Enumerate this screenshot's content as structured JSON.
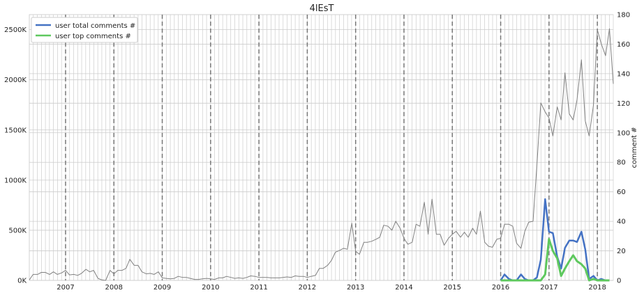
{
  "chart_data": {
    "type": "line",
    "title": "4lEsT",
    "y_left_label": "",
    "y_right_label": "comment #",
    "x_range": [
      2006.25,
      2018.33
    ],
    "y_left_range": [
      0,
      2650000
    ],
    "y_left_ticks": [
      0,
      500000,
      1000000,
      1500000,
      2000000,
      2500000
    ],
    "y_left_tick_labels": [
      "0K",
      "500K",
      "1000K",
      "1500K",
      "2000K",
      "2500K"
    ],
    "y_right_range": [
      0,
      180
    ],
    "y_right_ticks": [
      0,
      20,
      40,
      60,
      80,
      100,
      120,
      140,
      160,
      180
    ],
    "x_ticks": [
      2007,
      2008,
      2009,
      2010,
      2011,
      2012,
      2013,
      2014,
      2015,
      2016,
      2017,
      2018
    ],
    "x_tick_labels": [
      "2007",
      "2008",
      "2009",
      "2010",
      "2011",
      "2012",
      "2013",
      "2014",
      "2015",
      "2016",
      "2017",
      "2018"
    ],
    "year_markers": [
      2007,
      2008,
      2009,
      2010,
      2011,
      2012,
      2013,
      2014,
      2015,
      2016,
      2017,
      2018
    ],
    "grid": true,
    "legend_position": "top-left",
    "colors": {
      "total": "#4472c4",
      "top": "#5ec85e",
      "gray": "#808080",
      "grid": "#cccccc",
      "marker": "#777777"
    },
    "series": [
      {
        "name": "user total comments #",
        "axis": "right",
        "x": [
          2016.0,
          2016.08,
          2016.17,
          2016.25,
          2016.33,
          2016.42,
          2016.5,
          2016.58,
          2016.67,
          2016.75,
          2016.83,
          2016.92,
          2017.0,
          2017.08,
          2017.17,
          2017.25,
          2017.33,
          2017.42,
          2017.5,
          2017.58,
          2017.67,
          2017.75,
          2017.83,
          2017.92,
          2018.0,
          2018.08,
          2018.17,
          2018.25
        ],
        "values": [
          0,
          4,
          1,
          0,
          0,
          4,
          1,
          0,
          0,
          2,
          14,
          55,
          33,
          32,
          16,
          8,
          22,
          27,
          27,
          26,
          33,
          21,
          1,
          3,
          0,
          1,
          0,
          0
        ]
      },
      {
        "name": "user top comments #",
        "axis": "right",
        "x": [
          2016.0,
          2016.17,
          2016.42,
          2016.58,
          2016.75,
          2016.83,
          2016.92,
          2017.0,
          2017.08,
          2017.17,
          2017.25,
          2017.33,
          2017.42,
          2017.5,
          2017.58,
          2017.67,
          2017.75,
          2017.83,
          2017.92,
          2018.0,
          2018.08,
          2018.17,
          2018.25
        ],
        "values": [
          0,
          0,
          0,
          0,
          0,
          0,
          4,
          28,
          20,
          15,
          3,
          8,
          13,
          17,
          13,
          11,
          8,
          0,
          1,
          0,
          0,
          0,
          0
        ]
      },
      {
        "name": "",
        "axis": "left",
        "x": [
          2006.25,
          2006.33,
          2006.42,
          2006.5,
          2006.58,
          2006.67,
          2006.75,
          2006.83,
          2006.92,
          2007.0,
          2007.08,
          2007.17,
          2007.25,
          2007.33,
          2007.42,
          2007.5,
          2007.58,
          2007.67,
          2007.75,
          2007.83,
          2007.92,
          2008.0,
          2008.08,
          2008.17,
          2008.25,
          2008.33,
          2008.42,
          2008.5,
          2008.58,
          2008.67,
          2008.75,
          2008.83,
          2008.92,
          2009.0,
          2009.08,
          2009.17,
          2009.25,
          2009.33,
          2009.42,
          2009.5,
          2009.58,
          2009.67,
          2009.75,
          2009.83,
          2009.92,
          2010.0,
          2010.08,
          2010.17,
          2010.25,
          2010.33,
          2010.42,
          2010.5,
          2010.58,
          2010.67,
          2010.75,
          2010.83,
          2010.92,
          2011.0,
          2011.08,
          2011.17,
          2011.25,
          2011.33,
          2011.42,
          2011.5,
          2011.58,
          2011.67,
          2011.75,
          2011.83,
          2011.92,
          2012.0,
          2012.08,
          2012.17,
          2012.25,
          2012.33,
          2012.42,
          2012.5,
          2012.58,
          2012.67,
          2012.75,
          2012.83,
          2012.92,
          2013.0,
          2013.08,
          2013.17,
          2013.25,
          2013.33,
          2013.42,
          2013.5,
          2013.58,
          2013.67,
          2013.75,
          2013.83,
          2013.92,
          2014.0,
          2014.08,
          2014.17,
          2014.25,
          2014.33,
          2014.42,
          2014.5,
          2014.58,
          2014.67,
          2014.75,
          2014.83,
          2014.92,
          2015.0,
          2015.08,
          2015.17,
          2015.25,
          2015.33,
          2015.42,
          2015.5,
          2015.58,
          2015.67,
          2015.75,
          2015.83,
          2015.92,
          2016.0,
          2016.08,
          2016.17,
          2016.25,
          2016.33,
          2016.42,
          2016.5,
          2016.58,
          2016.67,
          2016.75,
          2016.83,
          2016.92,
          2017.0,
          2017.08,
          2017.17,
          2017.25,
          2017.33,
          2017.42,
          2017.5,
          2017.58,
          2017.67,
          2017.75,
          2017.83,
          2017.92,
          2018.0,
          2018.08,
          2018.17,
          2018.25,
          2018.33
        ],
        "values": [
          5000,
          60000,
          60000,
          80000,
          80000,
          60000,
          85000,
          60000,
          75000,
          100000,
          55000,
          60000,
          50000,
          70000,
          110000,
          85000,
          100000,
          20000,
          5000,
          0,
          100000,
          65000,
          100000,
          100000,
          120000,
          210000,
          150000,
          150000,
          85000,
          65000,
          70000,
          60000,
          85000,
          25000,
          20000,
          15000,
          20000,
          40000,
          30000,
          30000,
          20000,
          10000,
          10000,
          15000,
          20000,
          15000,
          10000,
          25000,
          25000,
          40000,
          30000,
          20000,
          25000,
          20000,
          30000,
          45000,
          40000,
          30000,
          30000,
          30000,
          25000,
          25000,
          25000,
          30000,
          35000,
          30000,
          45000,
          40000,
          40000,
          30000,
          40000,
          50000,
          120000,
          120000,
          150000,
          200000,
          280000,
          300000,
          320000,
          310000,
          570000,
          290000,
          260000,
          380000,
          380000,
          390000,
          410000,
          430000,
          550000,
          540000,
          500000,
          590000,
          520000,
          420000,
          360000,
          380000,
          560000,
          540000,
          780000,
          460000,
          810000,
          460000,
          460000,
          350000,
          420000,
          460000,
          490000,
          430000,
          480000,
          430000,
          520000,
          460000,
          690000,
          380000,
          340000,
          330000,
          410000,
          420000,
          560000,
          560000,
          540000,
          370000,
          320000,
          490000,
          580000,
          590000,
          1150000,
          1770000,
          1680000,
          1620000,
          1440000,
          1730000,
          1600000,
          2070000,
          1660000,
          1600000,
          1800000,
          2200000,
          1590000,
          1440000,
          1750000,
          2500000,
          2360000,
          2240000,
          2510000,
          1960000
        ]
      }
    ]
  }
}
